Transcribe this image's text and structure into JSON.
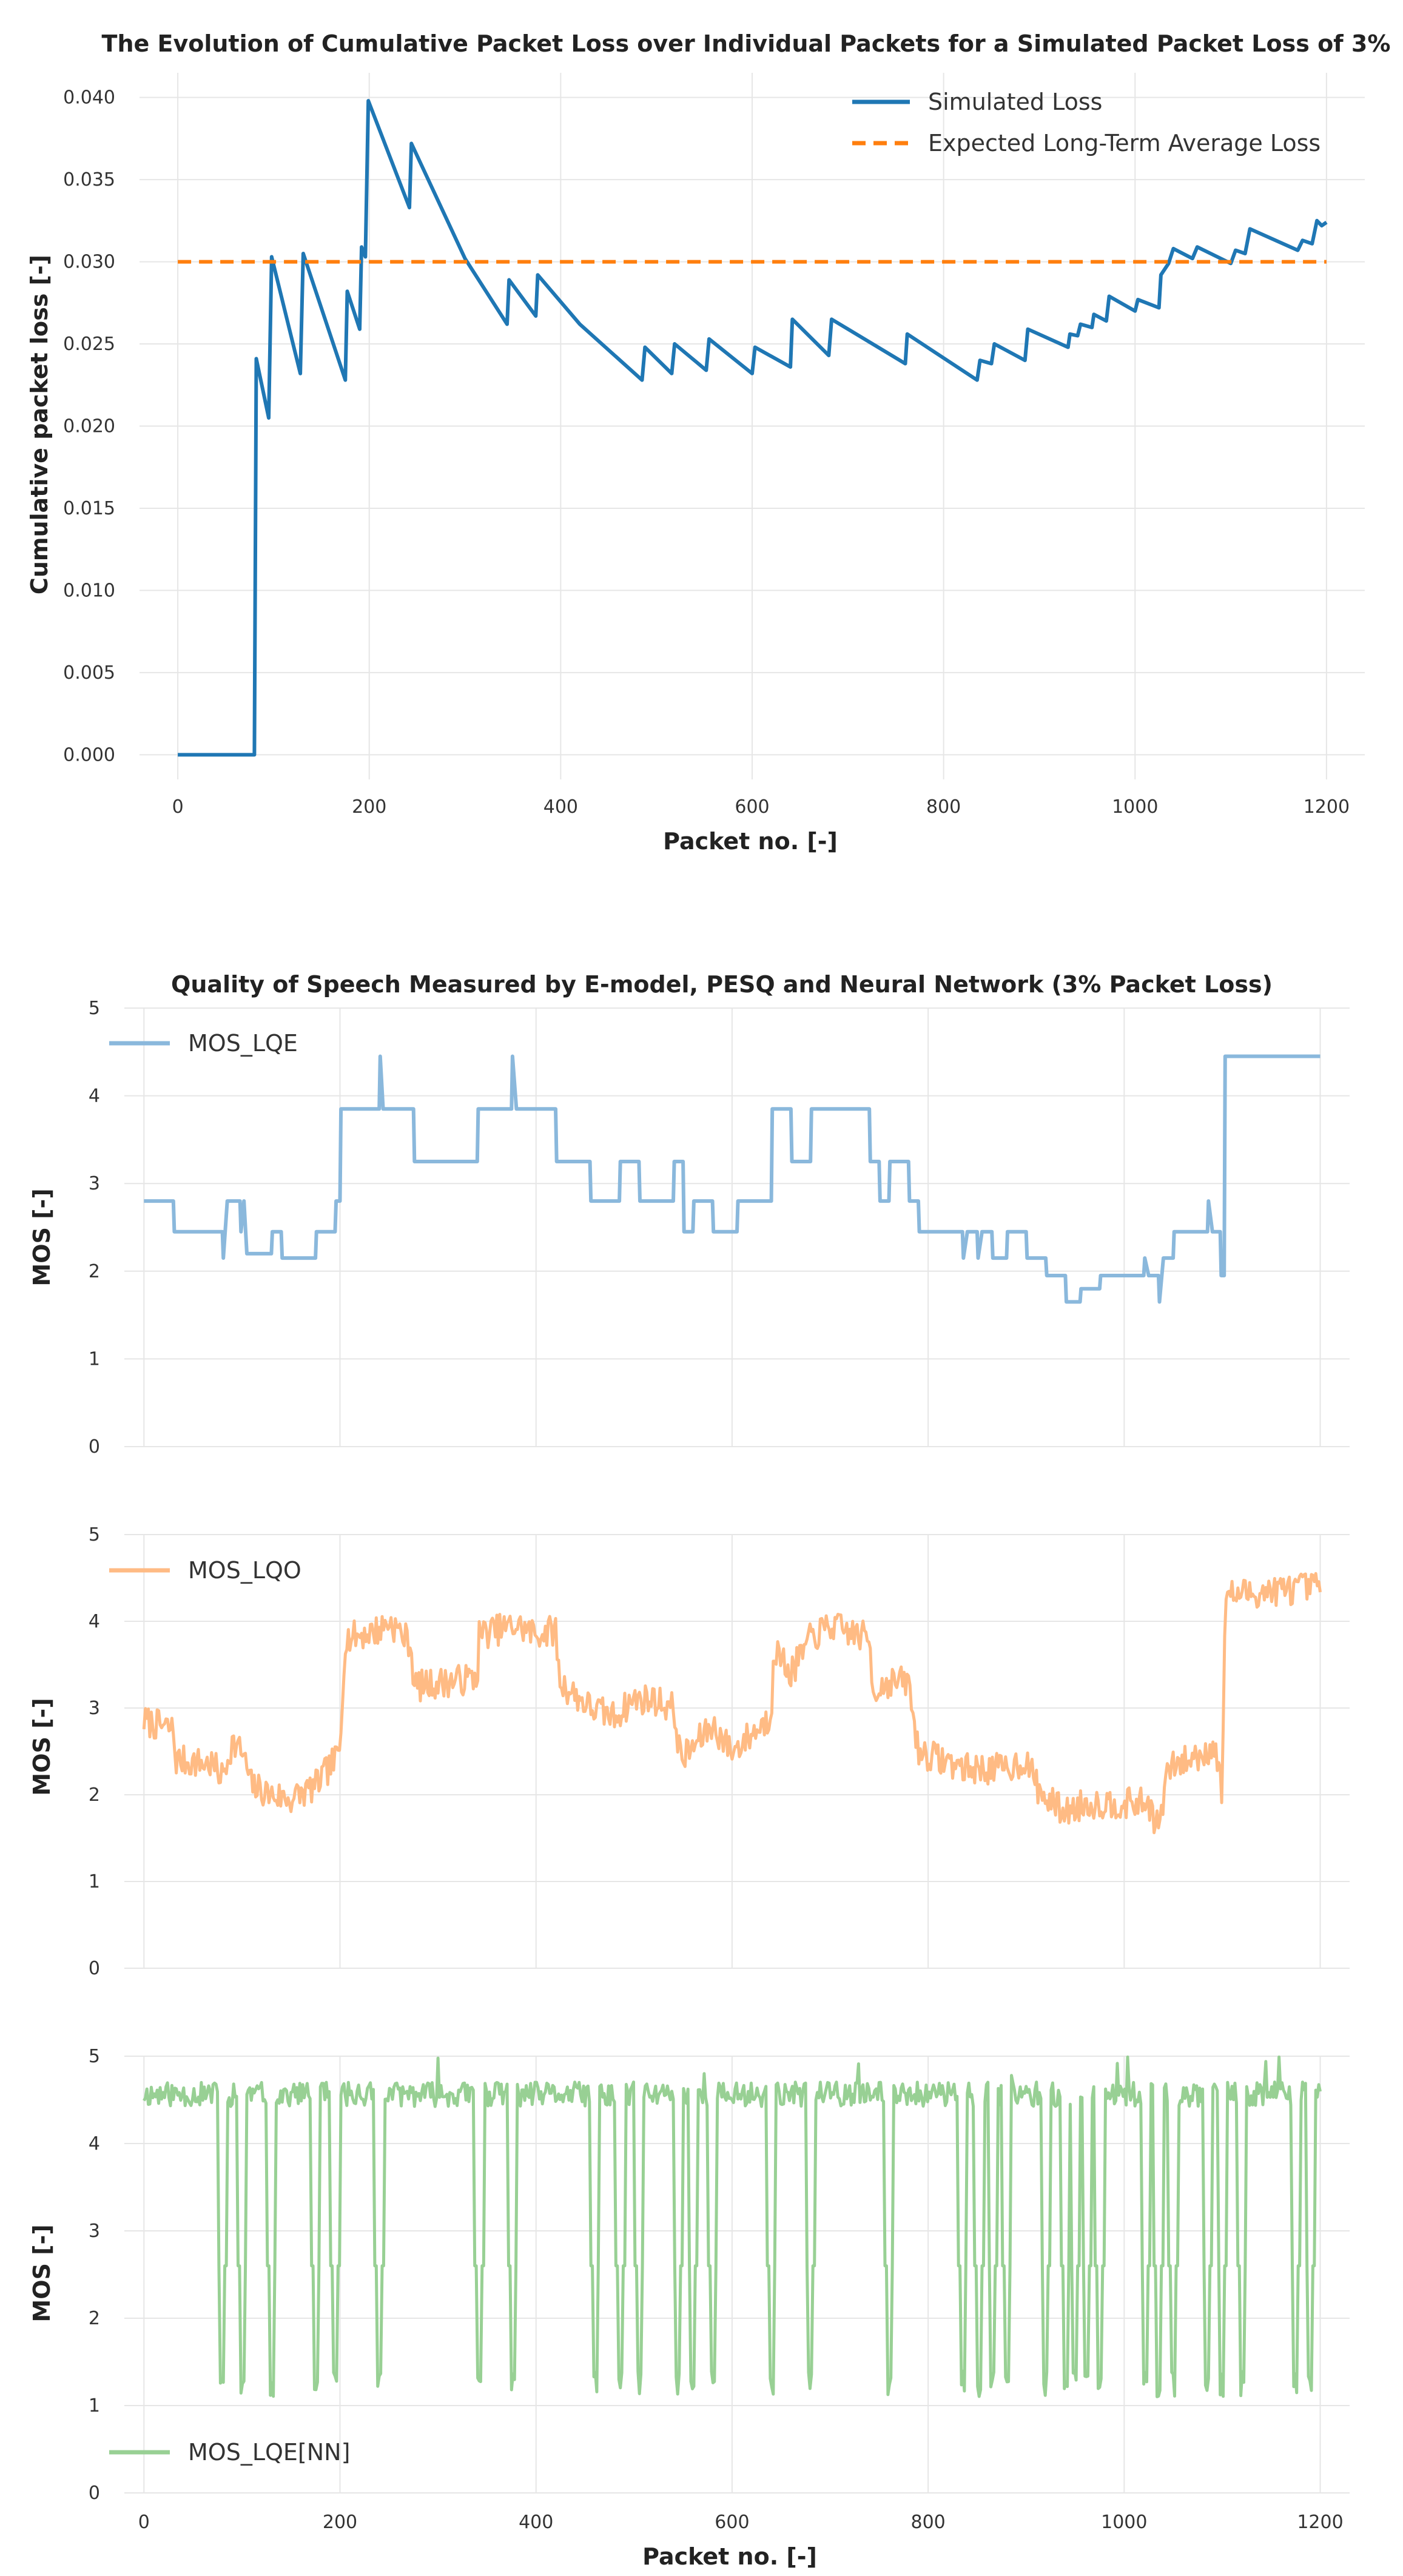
{
  "chart_data": [
    {
      "type": "line",
      "title": "The Evolution of Cumulative Packet Loss over Individual Packets for a Simulated Packet Loss of 3%",
      "xlabel": "Packet no. [-]",
      "ylabel": "Cumulative packet loss [-]",
      "xlim": [
        -40,
        1240
      ],
      "ylim": [
        -0.0015,
        0.0415
      ],
      "xticks": [
        0,
        200,
        400,
        600,
        800,
        1000,
        1200
      ],
      "xtick_labels": [
        "0",
        "200",
        "400",
        "600",
        "800",
        "1000",
        "1200"
      ],
      "yticks": [
        0.0,
        0.005,
        0.01,
        0.015,
        0.02,
        0.025,
        0.03,
        0.035,
        0.04
      ],
      "ytick_labels": [
        "0.000",
        "0.005",
        "0.010",
        "0.015",
        "0.020",
        "0.025",
        "0.030",
        "0.035",
        "0.040"
      ],
      "legend_position": "top-right",
      "series": [
        {
          "name": "Simulated Loss",
          "color": "#1f77b4",
          "style": "solid",
          "points": [
            [
              0,
              0
            ],
            [
              80,
              0
            ],
            [
              82,
              0.0241
            ],
            [
              95,
              0.0205
            ],
            [
              98,
              0.0303
            ],
            [
              128,
              0.0232
            ],
            [
              131,
              0.0305
            ],
            [
              175,
              0.0228
            ],
            [
              177,
              0.0282
            ],
            [
              190,
              0.0259
            ],
            [
              192,
              0.0309
            ],
            [
              196,
              0.0303
            ],
            [
              199,
              0.0398
            ],
            [
              242,
              0.0333
            ],
            [
              244,
              0.0372
            ],
            [
              300,
              0.0302
            ],
            [
              344,
              0.0262
            ],
            [
              346,
              0.0289
            ],
            [
              374,
              0.0267
            ],
            [
              376,
              0.0292
            ],
            [
              420,
              0.0262
            ],
            [
              485,
              0.0228
            ],
            [
              488,
              0.0248
            ],
            [
              516,
              0.0232
            ],
            [
              519,
              0.025
            ],
            [
              552,
              0.0234
            ],
            [
              555,
              0.0253
            ],
            [
              600,
              0.0232
            ],
            [
              603,
              0.0248
            ],
            [
              640,
              0.0236
            ],
            [
              642,
              0.0265
            ],
            [
              680,
              0.0243
            ],
            [
              683,
              0.0265
            ],
            [
              760,
              0.0238
            ],
            [
              762,
              0.0256
            ],
            [
              835,
              0.0228
            ],
            [
              838,
              0.024
            ],
            [
              850,
              0.0238
            ],
            [
              853,
              0.025
            ],
            [
              885,
              0.024
            ],
            [
              888,
              0.0259
            ],
            [
              930,
              0.0248
            ],
            [
              932,
              0.0256
            ],
            [
              940,
              0.0255
            ],
            [
              943,
              0.0262
            ],
            [
              955,
              0.026
            ],
            [
              957,
              0.0268
            ],
            [
              970,
              0.0264
            ],
            [
              973,
              0.0279
            ],
            [
              1000,
              0.027
            ],
            [
              1003,
              0.0277
            ],
            [
              1025,
              0.0272
            ],
            [
              1027,
              0.0292
            ],
            [
              1035,
              0.0299
            ],
            [
              1040,
              0.0308
            ],
            [
              1060,
              0.0302
            ],
            [
              1065,
              0.0309
            ],
            [
              1100,
              0.0299
            ],
            [
              1105,
              0.0307
            ],
            [
              1115,
              0.0305
            ],
            [
              1120,
              0.032
            ],
            [
              1170,
              0.0307
            ],
            [
              1175,
              0.0313
            ],
            [
              1185,
              0.0311
            ],
            [
              1190,
              0.0325
            ],
            [
              1195,
              0.0322
            ],
            [
              1200,
              0.0324
            ]
          ]
        },
        {
          "name": "Expected Long-Term Average Loss",
          "color": "#ff7f0e",
          "style": "dashed",
          "points": [
            [
              0,
              0.03
            ],
            [
              1200,
              0.03
            ]
          ]
        }
      ]
    },
    {
      "type": "line",
      "title": "Quality of Speech Measured by E-model, PESQ and Neural Network (3% Packet Loss)",
      "ylabel": "MOS [-]",
      "xlim": [
        -20,
        1230
      ],
      "ylim": [
        0,
        5
      ],
      "xticks": [
        0,
        200,
        400,
        600,
        800,
        1000,
        1200
      ],
      "yticks": [
        0,
        1,
        2,
        3,
        4,
        5
      ],
      "ytick_labels": [
        "0",
        "1",
        "2",
        "3",
        "4",
        "5"
      ],
      "legend_position": "top-left",
      "series": [
        {
          "name": "MOS_LQE",
          "color": "#8ab8dc",
          "style": "steps",
          "points": [
            [
              0,
              2.8
            ],
            [
              30,
              2.8
            ],
            [
              31,
              2.45
            ],
            [
              80,
              2.45
            ],
            [
              81,
              2.15
            ],
            [
              85,
              2.8
            ],
            [
              98,
              2.8
            ],
            [
              99,
              2.45
            ],
            [
              102,
              2.8
            ],
            [
              105,
              2.2
            ],
            [
              130,
              2.2
            ],
            [
              131,
              2.45
            ],
            [
              140,
              2.45
            ],
            [
              141,
              2.15
            ],
            [
              175,
              2.15
            ],
            [
              176,
              2.45
            ],
            [
              195,
              2.45
            ],
            [
              196,
              2.8
            ],
            [
              200,
              2.8
            ],
            [
              201,
              3.85
            ],
            [
              240,
              3.85
            ],
            [
              241,
              4.45
            ],
            [
              244,
              3.85
            ],
            [
              275,
              3.85
            ],
            [
              276,
              3.25
            ],
            [
              340,
              3.25
            ],
            [
              341,
              3.85
            ],
            [
              375,
              3.85
            ],
            [
              376,
              4.45
            ],
            [
              380,
              3.85
            ],
            [
              420,
              3.85
            ],
            [
              421,
              3.25
            ],
            [
              455,
              3.25
            ],
            [
              456,
              2.8
            ],
            [
              485,
              2.8
            ],
            [
              486,
              3.25
            ],
            [
              505,
              3.25
            ],
            [
              506,
              2.8
            ],
            [
              540,
              2.8
            ],
            [
              541,
              3.25
            ],
            [
              550,
              3.25
            ],
            [
              551,
              2.45
            ],
            [
              560,
              2.45
            ],
            [
              561,
              2.8
            ],
            [
              580,
              2.8
            ],
            [
              581,
              2.45
            ],
            [
              605,
              2.45
            ],
            [
              606,
              2.8
            ],
            [
              640,
              2.8
            ],
            [
              641,
              3.85
            ],
            [
              660,
              3.85
            ],
            [
              661,
              3.25
            ],
            [
              680,
              3.25
            ],
            [
              681,
              3.85
            ],
            [
              740,
              3.85
            ],
            [
              741,
              3.25
            ],
            [
              750,
              3.25
            ],
            [
              751,
              2.8
            ],
            [
              760,
              2.8
            ],
            [
              761,
              3.25
            ],
            [
              780,
              3.25
            ],
            [
              781,
              2.8
            ],
            [
              790,
              2.8
            ],
            [
              791,
              2.45
            ],
            [
              835,
              2.45
            ],
            [
              836,
              2.15
            ],
            [
              840,
              2.45
            ],
            [
              850,
              2.45
            ],
            [
              851,
              2.15
            ],
            [
              855,
              2.45
            ],
            [
              865,
              2.45
            ],
            [
              866,
              2.15
            ],
            [
              880,
              2.15
            ],
            [
              881,
              2.45
            ],
            [
              900,
              2.45
            ],
            [
              901,
              2.15
            ],
            [
              920,
              2.15
            ],
            [
              921,
              1.95
            ],
            [
              940,
              1.95
            ],
            [
              941,
              1.65
            ],
            [
              955,
              1.65
            ],
            [
              956,
              1.8
            ],
            [
              975,
              1.8
            ],
            [
              976,
              1.95
            ],
            [
              1020,
              1.95
            ],
            [
              1021,
              2.15
            ],
            [
              1025,
              1.95
            ],
            [
              1035,
              1.95
            ],
            [
              1036,
              1.65
            ],
            [
              1040,
              2.15
            ],
            [
              1050,
              2.15
            ],
            [
              1051,
              2.45
            ],
            [
              1085,
              2.45
            ],
            [
              1086,
              2.8
            ],
            [
              1090,
              2.45
            ],
            [
              1098,
              2.45
            ],
            [
              1099,
              1.95
            ],
            [
              1102,
              1.95
            ],
            [
              1103,
              4.45
            ],
            [
              1200,
              4.45
            ]
          ]
        }
      ]
    },
    {
      "type": "line",
      "ylabel": "MOS [-]",
      "xlim": [
        -20,
        1230
      ],
      "ylim": [
        0,
        5
      ],
      "xticks": [
        0,
        200,
        400,
        600,
        800,
        1000,
        1200
      ],
      "yticks": [
        0,
        1,
        2,
        3,
        4,
        5
      ],
      "ytick_labels": [
        "0",
        "1",
        "2",
        "3",
        "4",
        "5"
      ],
      "legend_position": "top-left",
      "series": [
        {
          "name": "MOS_LQO",
          "color": "#ffbb84",
          "style": "noisy",
          "noise": 0.18,
          "seed": 7,
          "points": [
            [
              0,
              2.85
            ],
            [
              30,
              2.75
            ],
            [
              32,
              2.4
            ],
            [
              70,
              2.35
            ],
            [
              80,
              2.2
            ],
            [
              90,
              2.6
            ],
            [
              100,
              2.5
            ],
            [
              110,
              2.1
            ],
            [
              130,
              2.0
            ],
            [
              150,
              1.95
            ],
            [
              175,
              2.1
            ],
            [
              195,
              2.4
            ],
            [
              200,
              2.5
            ],
            [
              205,
              3.8
            ],
            [
              240,
              3.9
            ],
            [
              250,
              4.0
            ],
            [
              272,
              3.75
            ],
            [
              276,
              3.25
            ],
            [
              340,
              3.35
            ],
            [
              342,
              3.85
            ],
            [
              360,
              3.9
            ],
            [
              380,
              3.95
            ],
            [
              400,
              3.85
            ],
            [
              420,
              3.9
            ],
            [
              424,
              3.3
            ],
            [
              456,
              3.0
            ],
            [
              480,
              2.9
            ],
            [
              500,
              3.1
            ],
            [
              520,
              3.1
            ],
            [
              540,
              3.0
            ],
            [
              548,
              2.4
            ],
            [
              580,
              2.8
            ],
            [
              600,
              2.5
            ],
            [
              620,
              2.7
            ],
            [
              640,
              2.9
            ],
            [
              642,
              3.7
            ],
            [
              660,
              3.4
            ],
            [
              680,
              3.8
            ],
            [
              700,
              3.95
            ],
            [
              740,
              3.8
            ],
            [
              744,
              3.2
            ],
            [
              760,
              3.3
            ],
            [
              780,
              3.3
            ],
            [
              790,
              2.5
            ],
            [
              840,
              2.3
            ],
            [
              880,
              2.3
            ],
            [
              900,
              2.4
            ],
            [
              915,
              2.0
            ],
            [
              940,
              1.8
            ],
            [
              960,
              1.9
            ],
            [
              990,
              1.9
            ],
            [
              1025,
              1.9
            ],
            [
              1035,
              1.6
            ],
            [
              1045,
              2.3
            ],
            [
              1085,
              2.5
            ],
            [
              1092,
              2.6
            ],
            [
              1100,
              2.0
            ],
            [
              1103,
              4.3
            ],
            [
              1150,
              4.35
            ],
            [
              1200,
              4.4
            ]
          ]
        }
      ]
    },
    {
      "type": "line",
      "xlabel": "Packet no. [-]",
      "ylabel": "MOS [-]",
      "xlim": [
        -20,
        1230
      ],
      "ylim": [
        0,
        5
      ],
      "xticks": [
        0,
        200,
        400,
        600,
        800,
        1000,
        1200
      ],
      "xtick_labels": [
        "0",
        "200",
        "400",
        "600",
        "800",
        "1000",
        "1200"
      ],
      "yticks": [
        0,
        1,
        2,
        3,
        4,
        5
      ],
      "ytick_labels": [
        "0",
        "1",
        "2",
        "3",
        "4",
        "5"
      ],
      "legend_position": "bottom-left",
      "series": [
        {
          "name": "MOS_LQE[NN]",
          "color": "#98d094",
          "style": "noisy",
          "noise": 0.14,
          "seed": 11,
          "baseline": 4.55,
          "dips": [
            80,
            100,
            130,
            175,
            195,
            240,
            342,
            376,
            460,
            486,
            505,
            545,
            560,
            580,
            640,
            680,
            760,
            835,
            852,
            866,
            880,
            920,
            940,
            950,
            962,
            975,
            1022,
            1035,
            1050,
            1085,
            1100,
            1120,
            1175,
            1190
          ],
          "dip_level": 1.1
        }
      ]
    }
  ]
}
